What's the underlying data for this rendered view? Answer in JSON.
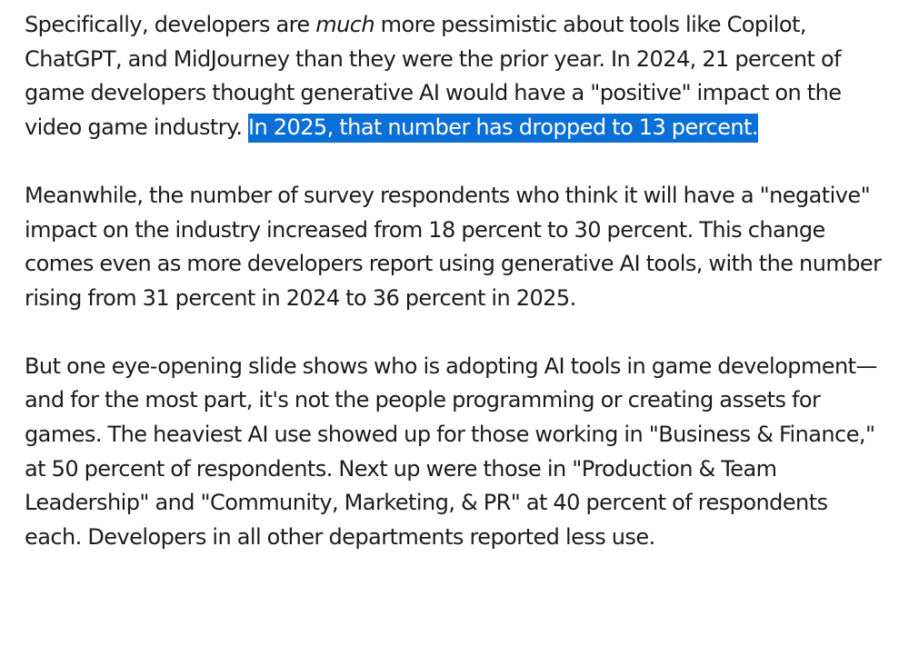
{
  "article": {
    "p1": {
      "part1": "Specifically, developers are ",
      "emphasis": "much",
      "part2": " more pessimistic about tools like Copilot, ChatGPT, and MidJourney than they were the prior year. In 2024, 21 percent of game developers thought generative AI would have a \"positive\" impact on the video game industry. ",
      "highlighted": "In 2025, that number has dropped to 13 percent."
    },
    "p2": "Meanwhile, the number of survey respondents who think it will have a \"negative\" impact on the industry increased from 18 percent to 30 percent. This change comes even as more developers report using generative AI tools, with the number rising from 31 percent in 2024 to 36 percent in 2025.",
    "p3": "But one eye-opening slide shows who is adopting AI tools in game development—and for the most part, it's not the people programming or creating assets for games. The heaviest AI use showed up for those working in \"Business & Finance,\" at 50 percent of respondents. Next up were those in \"Production & Team Leadership\" and \"Community, Marketing, & PR\"  at 40 percent of respondents each. Developers in all other departments reported less use."
  },
  "colors": {
    "text": "#1c1c1c",
    "selection_highlight": "#0a6fd6",
    "background": "#ffffff"
  }
}
